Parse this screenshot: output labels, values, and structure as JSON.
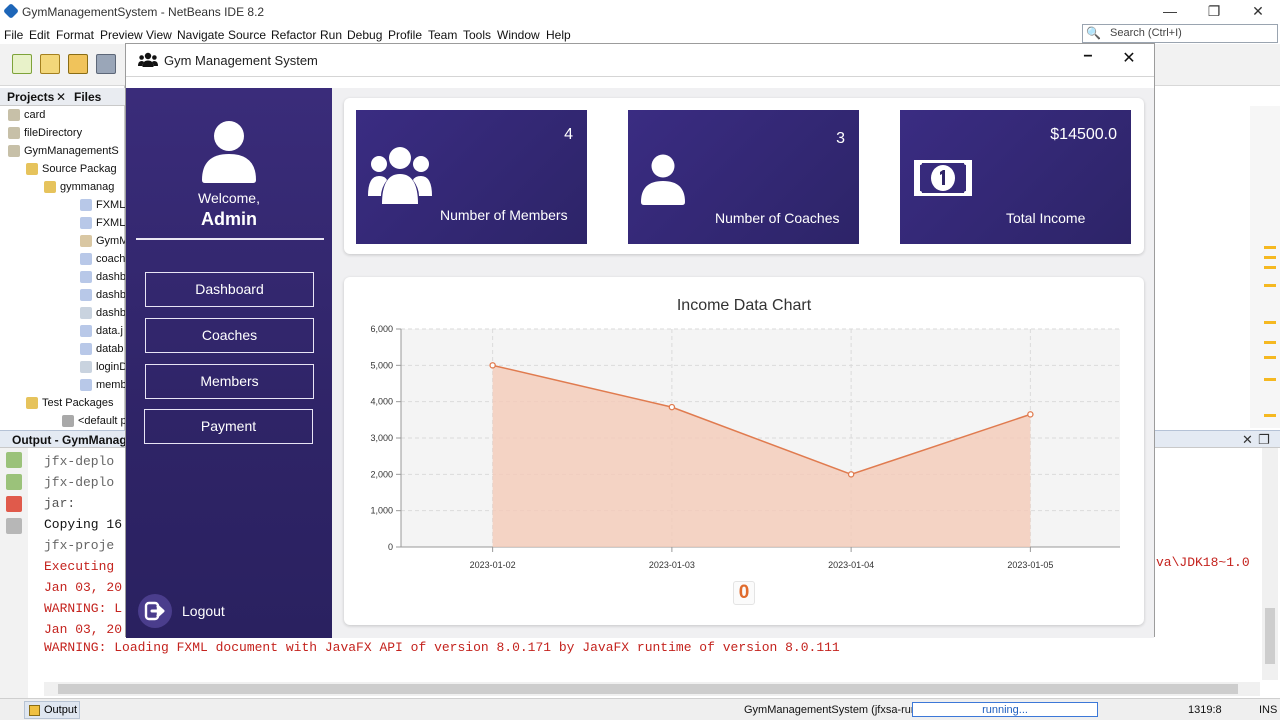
{
  "ide": {
    "title": "GymManagementSystem - NetBeans IDE 8.2",
    "window_controls": {
      "minimize": "—",
      "maximize": "❐",
      "close": "✕"
    },
    "menu": [
      "File",
      "Edit",
      "Format",
      "Preview",
      "View",
      "Navigate",
      "Source",
      "Refactor",
      "Run",
      "Debug",
      "Profile",
      "Team",
      "Tools",
      "Window",
      "Help"
    ],
    "search_placeholder": "Search (Ctrl+I)",
    "panel_tabs": {
      "projects": "Projects",
      "close": "✕",
      "files": "Files"
    },
    "tree": [
      {
        "label": "card"
      },
      {
        "label": "fileDirectory"
      },
      {
        "label": "GymManagementS"
      },
      {
        "label": "Source Packag"
      },
      {
        "label": "gymmanag"
      },
      {
        "label": "FXMLD"
      },
      {
        "label": "FXMLD"
      },
      {
        "label": "GymM"
      },
      {
        "label": "coach"
      },
      {
        "label": "dashb"
      },
      {
        "label": "dashb"
      },
      {
        "label": "dashb"
      },
      {
        "label": "data.j"
      },
      {
        "label": "datab"
      },
      {
        "label": "loginD"
      },
      {
        "label": "memb"
      },
      {
        "label": "Test Packages"
      },
      {
        "label": "<default p"
      }
    ],
    "output": {
      "tab_title": "Output - GymManager",
      "close": "✕",
      "restore": "❐",
      "lines": [
        {
          "text": "jfx-deplo"
        },
        {
          "text": "jfx-deplo"
        },
        {
          "text": "jar:"
        },
        {
          "text": "Copying 16"
        },
        {
          "text": "jfx-proje"
        },
        {
          "text": "Executing"
        },
        {
          "text": "Jan 03, 20"
        },
        {
          "text": "WARNING: L"
        },
        {
          "text": "Jan 03, 20"
        },
        {
          "text": "WARNING: Loading FXML document with JavaFX API of version 8.0.171 by JavaFX runtime of version 8.0.111"
        }
      ],
      "right_fragment": "va\\JDK18~1.0"
    },
    "status": {
      "output_tab": "Output",
      "process": "GymManagementSystem (jfxsa-run)",
      "progress_label": "running...",
      "position": "1319:8",
      "mode": "INS"
    }
  },
  "gym": {
    "window_title": "Gym Management System",
    "minimize": "−",
    "close": "✕",
    "sidebar": {
      "welcome": "Welcome,",
      "user": "Admin",
      "nav": [
        {
          "label": "Dashboard"
        },
        {
          "label": "Coaches"
        },
        {
          "label": "Members"
        },
        {
          "label": "Payment"
        }
      ],
      "logout": "Logout"
    },
    "cards": [
      {
        "value": "4",
        "label": "Number of Members",
        "icon": "users-icon"
      },
      {
        "value": "3",
        "label": "Number of Coaches",
        "icon": "user-icon"
      },
      {
        "value": "$14500.0",
        "label": "Total Income",
        "icon": "money-icon"
      }
    ],
    "badge": "0",
    "colors": {
      "sidebar": "#2f2467",
      "card": "#33287a",
      "chart_line": "#e07b4f",
      "chart_fill": "#f4cbb8"
    }
  },
  "chart_data": {
    "type": "area",
    "title": "Income Data Chart",
    "categories": [
      "2023-01-02",
      "2023-01-03",
      "2023-01-04",
      "2023-01-05"
    ],
    "values": [
      5000,
      3850,
      2000,
      3650
    ],
    "ylim": [
      0,
      6000
    ],
    "yticks": [
      0,
      1000,
      2000,
      3000,
      4000,
      5000,
      6000
    ],
    "ytick_labels": [
      "0",
      "1,000",
      "2,000",
      "3,000",
      "4,000",
      "5,000",
      "6,000"
    ],
    "grid": true,
    "legend": "none"
  }
}
